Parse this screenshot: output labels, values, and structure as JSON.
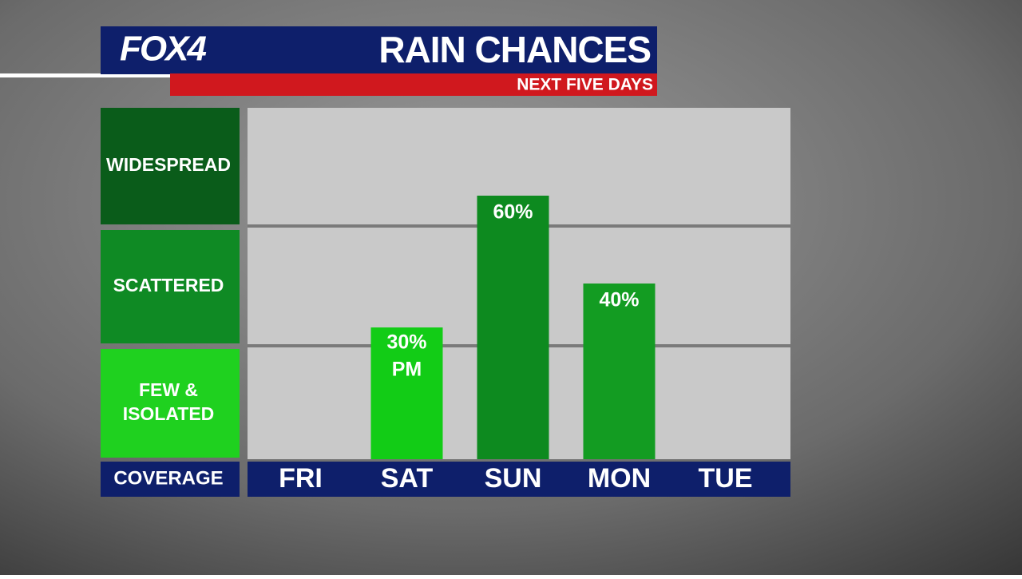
{
  "chart_data": {
    "type": "bar",
    "brand": "FOX4",
    "title": "RAIN CHANCES",
    "subtitle": "NEXT FIVE DAYS",
    "categories": [
      "FRI",
      "SAT",
      "SUN",
      "MON",
      "TUE"
    ],
    "values": [
      null,
      30,
      60,
      40,
      null
    ],
    "value_labels": [
      null,
      [
        "30%",
        "PM"
      ],
      "60%",
      "40%",
      null
    ],
    "colors": [
      null,
      "#12cc16",
      "#0d8a1f",
      "#139c22",
      null
    ],
    "ylim": [
      0,
      80
    ],
    "y_axis_label": "COVERAGE",
    "coverage_levels": [
      {
        "label": [
          "FEW &",
          "ISOLATED"
        ],
        "color": "#1fd11f"
      },
      {
        "label": [
          "SCATTERED"
        ],
        "color": "#0f8a24"
      },
      {
        "label": [
          "WIDESPREAD"
        ],
        "color": "#0a5c1a"
      }
    ]
  }
}
